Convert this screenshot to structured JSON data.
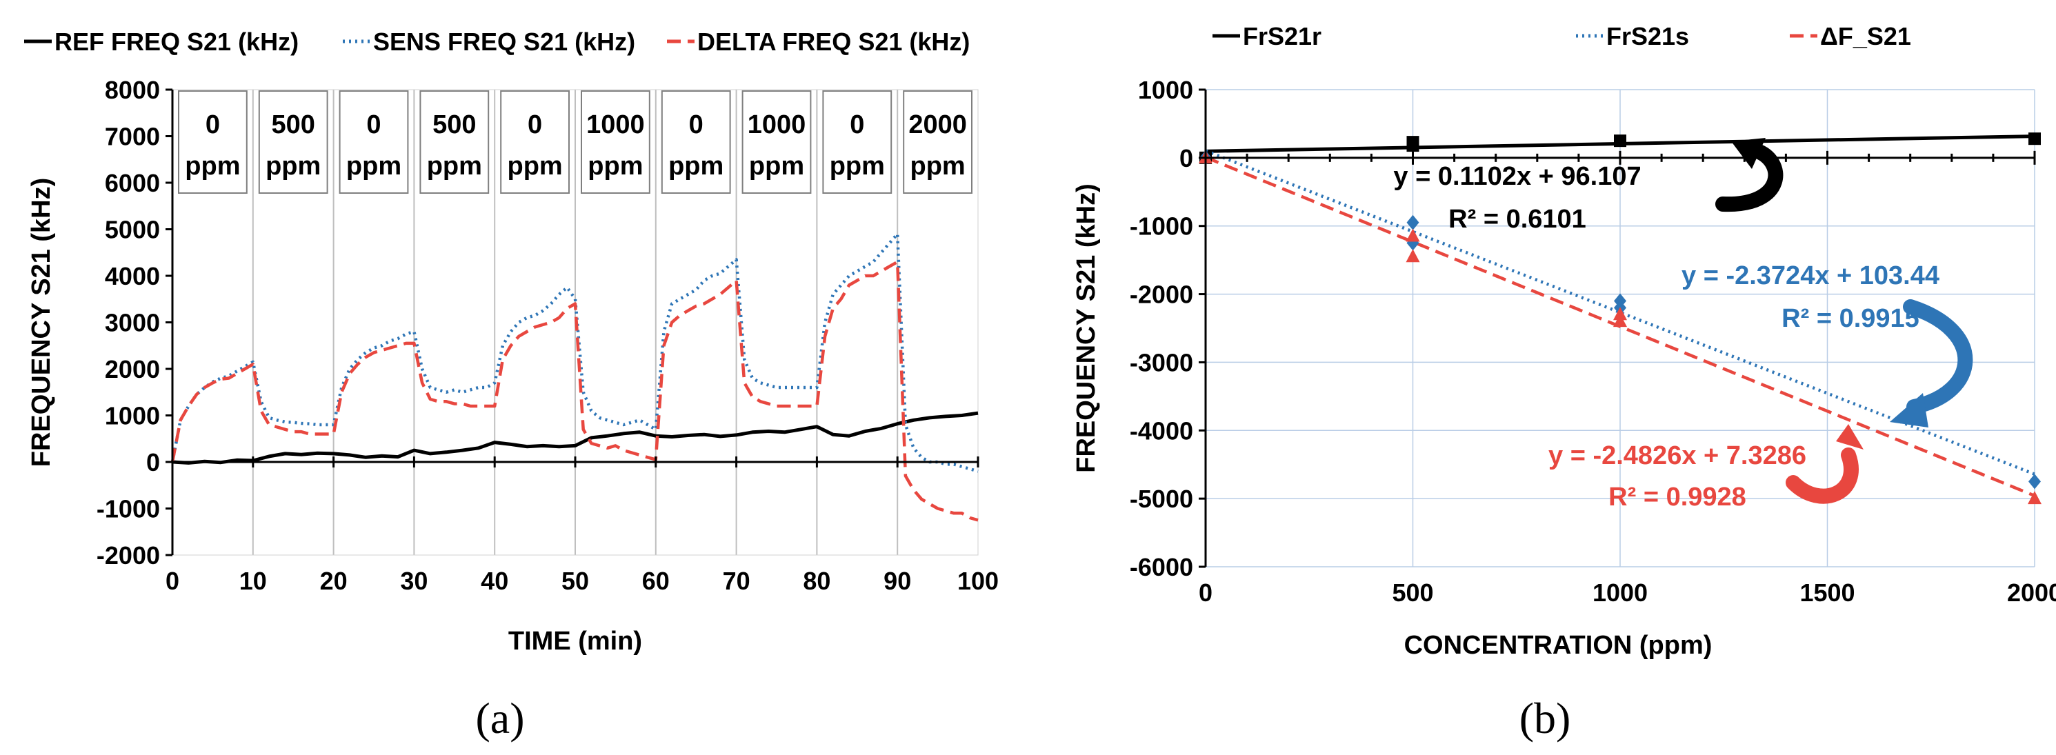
{
  "panels": {
    "a_caption": "(a)",
    "b_caption": "(b)"
  },
  "colors": {
    "ref": "#000000",
    "sens": "#2e75b6",
    "delta": "#e8473f",
    "grid": "#b9cde6",
    "annot_blue": "#2e75b6",
    "annot_red": "#e8473f"
  },
  "chart_data": [
    {
      "type": "line",
      "panel": "a",
      "xlabel": "TIME (min)",
      "ylabel": "FREQUENCY S21 (kHz)",
      "xlim": [
        0,
        100
      ],
      "ylim": [
        -2000,
        8000
      ],
      "xticks": [
        0,
        10,
        20,
        30,
        40,
        50,
        60,
        70,
        80,
        90,
        100
      ],
      "yticks": [
        -2000,
        -1000,
        0,
        1000,
        2000,
        3000,
        4000,
        5000,
        6000,
        7000,
        8000
      ],
      "legend_position": "top",
      "phases": [
        {
          "label": "0 ppm",
          "value": "0",
          "unit": "ppm"
        },
        {
          "label": "500 ppm",
          "value": "500",
          "unit": "ppm"
        },
        {
          "label": "0 ppm",
          "value": "0",
          "unit": "ppm"
        },
        {
          "label": "500 ppm",
          "value": "500",
          "unit": "ppm"
        },
        {
          "label": "0 ppm",
          "value": "0",
          "unit": "ppm"
        },
        {
          "label": "1000 ppm",
          "value": "1000",
          "unit": "ppm"
        },
        {
          "label": "0 ppm",
          "value": "0",
          "unit": "ppm"
        },
        {
          "label": "1000 ppm",
          "value": "1000",
          "unit": "ppm"
        },
        {
          "label": "0 ppm",
          "value": "0",
          "unit": "ppm"
        },
        {
          "label": "2000 ppm",
          "value": "2000",
          "unit": "ppm"
        }
      ],
      "series": [
        {
          "name": "REF FREQ S21 (kHz)",
          "style": "solid",
          "colorKey": "ref",
          "x": [
            0,
            2,
            4,
            6,
            8,
            10,
            12,
            14,
            16,
            18,
            20,
            22,
            24,
            26,
            28,
            30,
            32,
            34,
            36,
            38,
            40,
            42,
            44,
            46,
            48,
            50,
            52,
            54,
            56,
            58,
            60,
            62,
            64,
            66,
            68,
            70,
            72,
            74,
            76,
            78,
            80,
            82,
            84,
            86,
            88,
            90,
            92,
            94,
            96,
            98,
            100
          ],
          "y": [
            0,
            -20,
            10,
            -10,
            40,
            30,
            120,
            180,
            160,
            190,
            180,
            150,
            100,
            130,
            110,
            250,
            180,
            210,
            250,
            300,
            420,
            380,
            330,
            350,
            330,
            350,
            520,
            560,
            610,
            640,
            560,
            540,
            570,
            590,
            550,
            580,
            640,
            660,
            640,
            700,
            760,
            590,
            560,
            660,
            720,
            820,
            900,
            950,
            980,
            1000,
            1050
          ]
        },
        {
          "name": "SENS FREQ S21  (kHz)",
          "style": "dotted",
          "colorKey": "sens",
          "x": [
            0,
            1,
            2,
            3,
            4,
            5,
            6,
            7,
            8,
            9,
            10,
            11,
            12,
            13,
            14,
            15,
            16,
            17,
            18,
            19,
            20,
            21,
            22,
            23,
            24,
            25,
            26,
            27,
            28,
            29,
            30,
            31,
            32,
            33,
            34,
            35,
            36,
            37,
            38,
            39,
            40,
            41,
            42,
            43,
            44,
            45,
            46,
            47,
            48,
            49,
            50,
            51,
            52,
            53,
            54,
            55,
            56,
            57,
            58,
            59,
            60,
            61,
            62,
            63,
            64,
            65,
            66,
            67,
            68,
            69,
            70,
            71,
            72,
            73,
            74,
            75,
            76,
            77,
            78,
            79,
            80,
            81,
            82,
            83,
            84,
            85,
            86,
            87,
            88,
            89,
            90,
            91,
            92,
            93,
            94,
            95,
            96,
            97,
            98,
            99,
            100
          ],
          "y": [
            0,
            900,
            1200,
            1450,
            1600,
            1720,
            1800,
            1850,
            1950,
            2050,
            2150,
            1300,
            950,
            900,
            860,
            850,
            830,
            820,
            800,
            800,
            800,
            1600,
            2000,
            2200,
            2350,
            2450,
            2500,
            2600,
            2650,
            2750,
            2800,
            2000,
            1600,
            1550,
            1500,
            1550,
            1500,
            1550,
            1600,
            1600,
            1700,
            2500,
            2800,
            3000,
            3100,
            3150,
            3250,
            3400,
            3600,
            3750,
            3500,
            1500,
            1100,
            950,
            900,
            850,
            800,
            850,
            900,
            800,
            700,
            2800,
            3400,
            3500,
            3600,
            3700,
            3900,
            4000,
            4050,
            4200,
            4350,
            2200,
            1800,
            1700,
            1650,
            1600,
            1600,
            1600,
            1600,
            1600,
            1600,
            3000,
            3600,
            3800,
            4000,
            4100,
            4200,
            4300,
            4500,
            4700,
            4900,
            800,
            300,
            100,
            0,
            0,
            -50,
            -50,
            -100,
            -150,
            -200
          ]
        },
        {
          "name": "DELTA FREQ S21 (kHz)",
          "style": "dashed",
          "colorKey": "delta",
          "x": [
            0,
            1,
            2,
            3,
            4,
            5,
            6,
            7,
            8,
            9,
            10,
            11,
            12,
            13,
            14,
            15,
            16,
            17,
            18,
            19,
            20,
            21,
            22,
            23,
            24,
            25,
            26,
            27,
            28,
            29,
            30,
            31,
            32,
            33,
            34,
            35,
            36,
            37,
            38,
            39,
            40,
            41,
            42,
            43,
            44,
            45,
            46,
            47,
            48,
            49,
            50,
            51,
            52,
            53,
            54,
            55,
            56,
            57,
            58,
            59,
            60,
            61,
            62,
            63,
            64,
            65,
            66,
            67,
            68,
            69,
            70,
            71,
            72,
            73,
            74,
            75,
            76,
            77,
            78,
            79,
            80,
            81,
            82,
            83,
            84,
            85,
            86,
            87,
            88,
            89,
            90,
            91,
            92,
            93,
            94,
            95,
            96,
            97,
            98,
            99,
            100
          ],
          "y": [
            0,
            900,
            1200,
            1450,
            1600,
            1700,
            1780,
            1800,
            1900,
            2000,
            2100,
            1100,
            800,
            750,
            700,
            650,
            650,
            600,
            600,
            600,
            600,
            1500,
            1900,
            2100,
            2250,
            2350,
            2400,
            2450,
            2500,
            2550,
            2550,
            1700,
            1350,
            1300,
            1300,
            1250,
            1250,
            1200,
            1200,
            1200,
            1200,
            2200,
            2500,
            2700,
            2800,
            2900,
            2950,
            3000,
            3100,
            3300,
            3400,
            700,
            400,
            350,
            300,
            350,
            250,
            200,
            150,
            100,
            50,
            2500,
            3000,
            3150,
            3250,
            3350,
            3400,
            3500,
            3600,
            3750,
            3900,
            1700,
            1400,
            1300,
            1250,
            1200,
            1200,
            1200,
            1200,
            1200,
            1200,
            2700,
            3300,
            3500,
            3800,
            3900,
            4000,
            4000,
            4100,
            4200,
            4300,
            -300,
            -600,
            -800,
            -900,
            -1000,
            -1050,
            -1100,
            -1100,
            -1200,
            -1250
          ]
        }
      ]
    },
    {
      "type": "scatter",
      "panel": "b",
      "xlabel": "CONCENTRATION (ppm)",
      "ylabel": "FREQUENCY S21 (kHz)",
      "xlim": [
        0,
        2000
      ],
      "ylim": [
        -6000,
        1000
      ],
      "xticks": [
        0,
        500,
        1000,
        1500,
        2000
      ],
      "yticks": [
        -6000,
        -5000,
        -4000,
        -3000,
        -2000,
        -1000,
        0,
        1000
      ],
      "grid": true,
      "legend_position": "top",
      "series": [
        {
          "name": "FrS21r",
          "marker": "square",
          "trendline": "solid",
          "colorKey": "ref",
          "x": [
            0,
            500,
            500,
            1000,
            2000
          ],
          "y": [
            0,
            180,
            230,
            250,
            280
          ],
          "equation": "y = 0.1102x + 96.107",
          "r2": "R² = 0.6101",
          "slope": 0.1102,
          "intercept": 96.107
        },
        {
          "name": "FrS21s",
          "marker": "diamond",
          "trendline": "dotted",
          "colorKey": "sens",
          "x": [
            0,
            500,
            500,
            1000,
            1000,
            2000
          ],
          "y": [
            0,
            -950,
            -1250,
            -2100,
            -2200,
            -4750
          ],
          "equation": "y = -2.3724x + 103.44",
          "r2": "R² = 0.9915",
          "slope": -2.3724,
          "intercept": 103.44
        },
        {
          "name": "ΔF_S21",
          "marker": "triangle",
          "trendline": "dashed",
          "colorKey": "delta",
          "x": [
            0,
            500,
            500,
            1000,
            1000,
            2000
          ],
          "y": [
            0,
            -1150,
            -1450,
            -2300,
            -2400,
            -5000
          ],
          "equation": "y = -2.4826x + 7.3286",
          "r2": "R² = 0.9928",
          "slope": -2.4826,
          "intercept": 7.3286
        }
      ]
    }
  ]
}
